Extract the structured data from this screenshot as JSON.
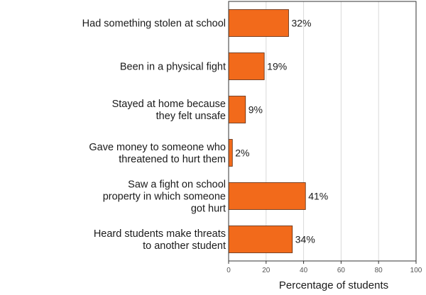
{
  "chart_data": {
    "type": "bar",
    "orientation": "horizontal",
    "title": "",
    "xlabel": "Percentage of students",
    "ylabel": "",
    "xlim": [
      0,
      100
    ],
    "ticks": [
      0,
      20,
      40,
      60,
      80,
      100
    ],
    "grid": "vertical",
    "categories": [
      [
        "Had something stolen at school"
      ],
      [
        "Been in a physical fight"
      ],
      [
        "Stayed at home because",
        "they felt unsafe"
      ],
      [
        "Gave money to someone who",
        "threatened to hurt them"
      ],
      [
        "Saw a fight on school",
        "property in which someone",
        "got hurt"
      ],
      [
        "Heard students make threats",
        "to another student"
      ]
    ],
    "values": [
      32,
      19,
      9,
      2,
      41,
      34
    ],
    "value_labels": [
      "32%",
      "19%",
      "9%",
      "2%",
      "41%",
      "34%"
    ],
    "colors": {
      "bar": "#f26a1b",
      "bar_stroke": "#5a2a10",
      "grid": "#d9d9d9",
      "axis": "#333333"
    }
  }
}
